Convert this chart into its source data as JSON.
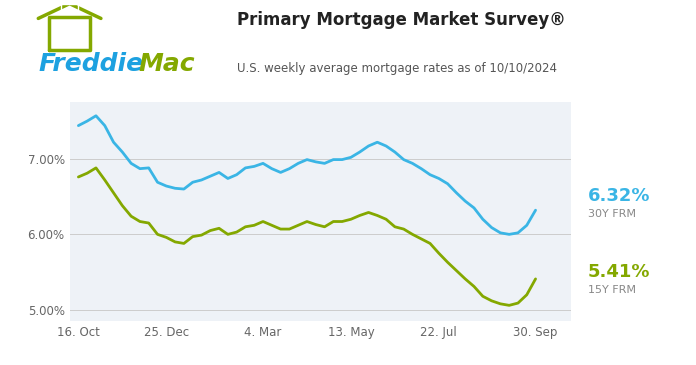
{
  "title": "Primary Mortgage Market Survey®",
  "subtitle": "U.S. weekly average mortgage rates as of 10/10/2024",
  "background_color": "#ffffff",
  "plot_bg_color": "#eef2f7",
  "line_30y_color": "#3ab5e5",
  "line_15y_color": "#84a800",
  "label_30y": "6.32%",
  "label_15y": "5.41%",
  "sublabel_30y": "30Y FRM",
  "sublabel_15y": "15Y FRM",
  "ylim": [
    4.85,
    7.75
  ],
  "yticks": [
    5.0,
    6.0,
    7.0
  ],
  "ytick_labels": [
    "5.00%",
    "6.00%",
    "7.00%"
  ],
  "xtick_labels": [
    "16. Oct",
    "25. Dec",
    "4. Mar",
    "13. May",
    "22. Jul",
    "30. Sep"
  ],
  "xtick_positions": [
    0,
    10,
    21,
    31,
    41,
    52
  ],
  "freddie_blue": "#1da1e0",
  "freddie_green": "#84a800",
  "xlim": [
    -1,
    56
  ],
  "dates_x": [
    0,
    1,
    2,
    3,
    4,
    5,
    6,
    7,
    8,
    9,
    10,
    11,
    12,
    13,
    14,
    15,
    16,
    17,
    18,
    19,
    20,
    21,
    22,
    23,
    24,
    25,
    26,
    27,
    28,
    29,
    30,
    31,
    32,
    33,
    34,
    35,
    36,
    37,
    38,
    39,
    40,
    41,
    42,
    43,
    44,
    45,
    46,
    47,
    48,
    49,
    50,
    51,
    52
  ],
  "vals_30y": [
    7.44,
    7.5,
    7.57,
    7.44,
    7.22,
    7.09,
    6.94,
    6.87,
    6.88,
    6.69,
    6.64,
    6.61,
    6.6,
    6.69,
    6.72,
    6.77,
    6.82,
    6.74,
    6.79,
    6.88,
    6.9,
    6.94,
    6.87,
    6.82,
    6.87,
    6.94,
    6.99,
    6.96,
    6.94,
    6.99,
    6.99,
    7.02,
    7.09,
    7.17,
    7.22,
    7.17,
    7.09,
    6.99,
    6.94,
    6.87,
    6.79,
    6.74,
    6.67,
    6.55,
    6.44,
    6.35,
    6.2,
    6.09,
    6.02,
    6.0,
    6.02,
    6.12,
    6.32
  ],
  "vals_15y": [
    6.76,
    6.81,
    6.88,
    6.72,
    6.55,
    6.38,
    6.24,
    6.17,
    6.15,
    6.0,
    5.96,
    5.9,
    5.88,
    5.97,
    5.99,
    6.05,
    6.08,
    6.0,
    6.03,
    6.1,
    6.12,
    6.17,
    6.12,
    6.07,
    6.07,
    6.12,
    6.17,
    6.13,
    6.1,
    6.17,
    6.17,
    6.2,
    6.25,
    6.29,
    6.25,
    6.2,
    6.1,
    6.07,
    6.0,
    5.94,
    5.88,
    5.75,
    5.63,
    5.52,
    5.41,
    5.31,
    5.18,
    5.12,
    5.08,
    5.06,
    5.09,
    5.2,
    5.41
  ]
}
